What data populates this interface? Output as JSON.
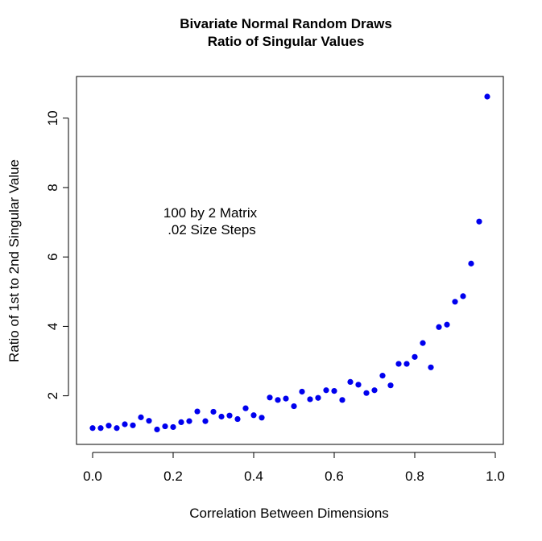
{
  "chart_data": {
    "type": "scatter",
    "title": "Bivariate Normal Random Draws",
    "subtitle": "Ratio of Singular Values",
    "xlabel": "Correlation Between Dimensions",
    "ylabel": "Ratio of 1st to 2nd Singular Value",
    "xlim": [
      -0.04,
      1.02
    ],
    "ylim": [
      0.6,
      11.2
    ],
    "x_ticks": [
      0.0,
      0.2,
      0.4,
      0.6,
      0.8,
      1.0
    ],
    "x_tick_labels": [
      "0.0",
      "0.2",
      "0.4",
      "0.6",
      "0.8",
      "1.0"
    ],
    "y_ticks": [
      2,
      4,
      6,
      8,
      10
    ],
    "y_tick_labels": [
      "2",
      "4",
      "6",
      "8",
      "10"
    ],
    "grid": false,
    "annotation": [
      "100 by 2 Matrix",
      ".02 Size Steps"
    ],
    "point_color": "#0000ee",
    "x": [
      0.0,
      0.02,
      0.04,
      0.06,
      0.08,
      0.1,
      0.12,
      0.14,
      0.16,
      0.18,
      0.2,
      0.22,
      0.24,
      0.26,
      0.28,
      0.3,
      0.32,
      0.34,
      0.36,
      0.38,
      0.4,
      0.42,
      0.44,
      0.46,
      0.48,
      0.5,
      0.52,
      0.54,
      0.56,
      0.58,
      0.6,
      0.62,
      0.64,
      0.66,
      0.68,
      0.7,
      0.72,
      0.74,
      0.76,
      0.78,
      0.8,
      0.82,
      0.84,
      0.86,
      0.88,
      0.9,
      0.92,
      0.94,
      0.96,
      0.98
    ],
    "y": [
      1.07,
      1.07,
      1.14,
      1.07,
      1.18,
      1.15,
      1.38,
      1.28,
      1.03,
      1.12,
      1.1,
      1.24,
      1.27,
      1.55,
      1.27,
      1.54,
      1.4,
      1.43,
      1.33,
      1.64,
      1.44,
      1.37,
      1.95,
      1.88,
      1.92,
      1.7,
      2.12,
      1.9,
      1.94,
      2.16,
      2.14,
      1.88,
      2.4,
      2.32,
      2.08,
      2.16,
      2.58,
      2.3,
      2.92,
      2.92,
      3.12,
      3.52,
      2.82,
      3.98,
      4.05,
      4.71,
      4.87,
      5.81,
      7.02,
      10.62
    ]
  }
}
